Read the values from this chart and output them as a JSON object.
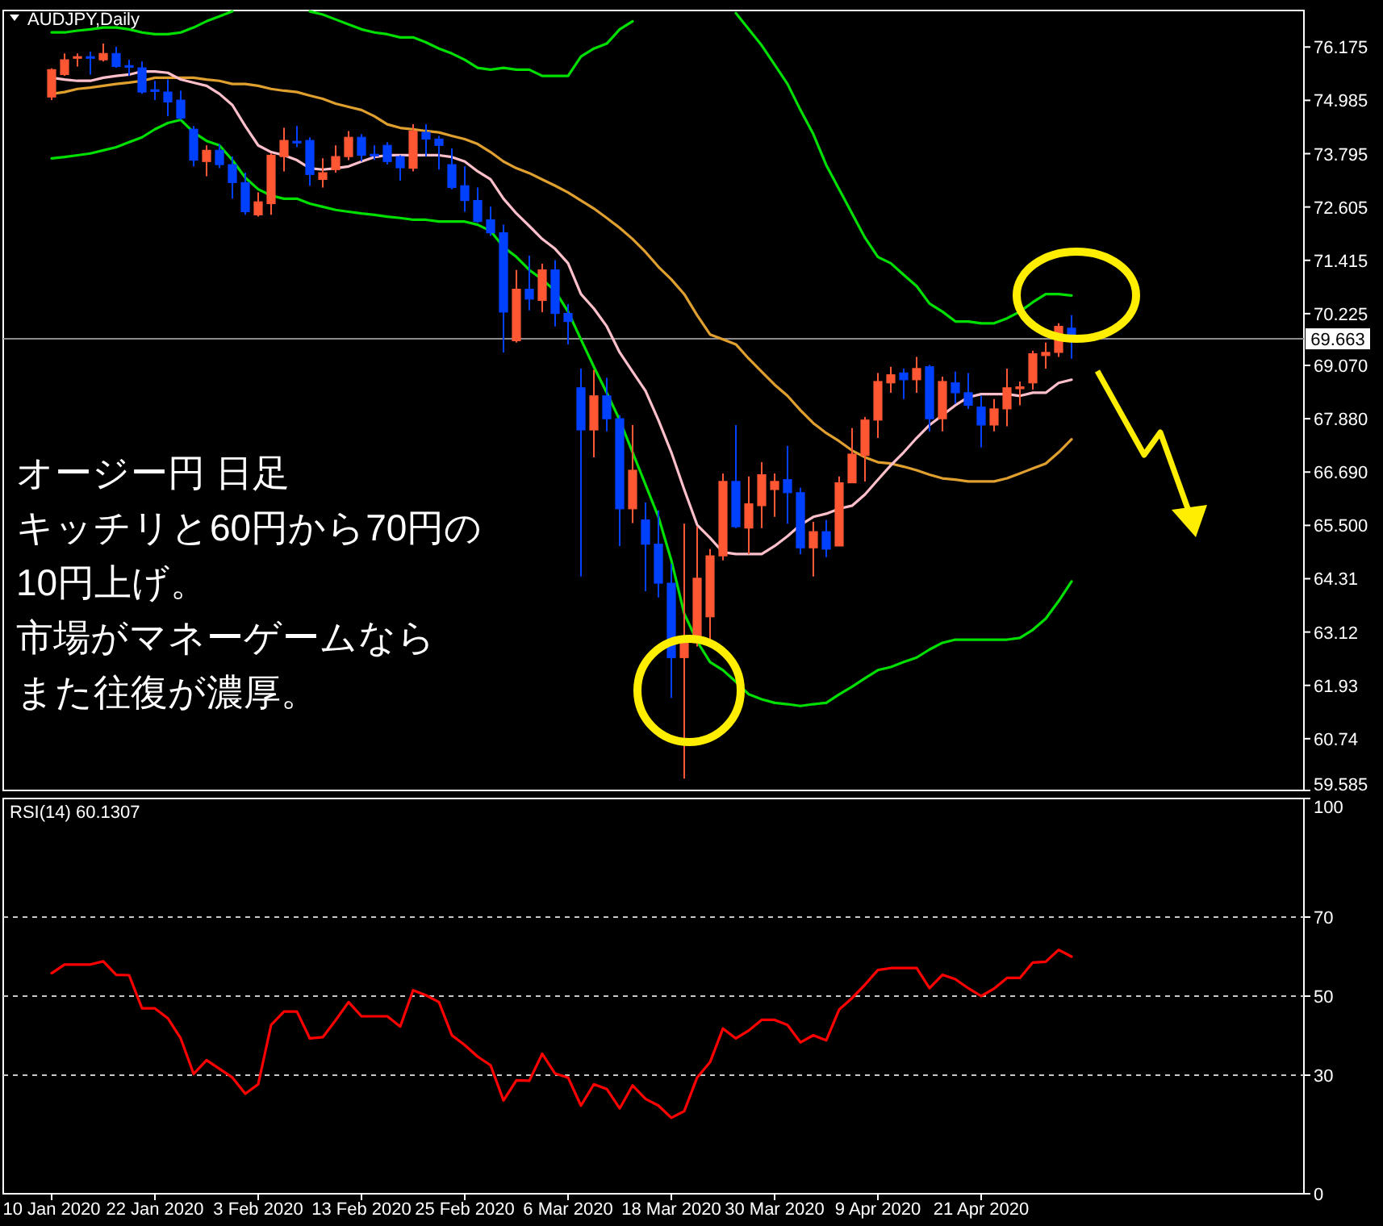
{
  "chart_data": [
    {
      "type": "candlestick",
      "title": "AUDJPY,Daily",
      "tick_labels": "y",
      "categories": [
        null,
        null,
        null,
        null,
        null,
        null,
        null,
        null,
        null,
        null,
        null,
        null,
        null,
        null,
        null,
        null,
        null,
        null,
        null,
        null,
        null,
        null,
        null,
        null,
        null,
        null,
        null,
        null,
        null,
        null,
        null,
        null,
        null,
        null,
        null,
        null,
        null,
        null,
        null,
        null,
        null,
        null,
        null,
        null,
        null,
        null,
        null,
        null,
        null,
        null,
        null,
        null,
        null,
        null,
        null,
        null,
        null,
        null,
        null,
        null,
        null,
        null,
        null,
        null,
        null,
        null,
        null,
        null,
        null,
        null,
        null,
        null,
        null,
        null,
        null,
        null,
        null,
        null,
        null,
        null
      ],
      "ohlc": [
        [
          75.06,
          75.7,
          74.99,
          75.67
        ],
        [
          75.56,
          76.03,
          75.53,
          75.89
        ],
        [
          75.93,
          76.03,
          75.74,
          75.96
        ],
        [
          75.96,
          76.07,
          75.56,
          75.93
        ],
        [
          75.89,
          76.25,
          75.85,
          76.03
        ],
        [
          76.03,
          76.18,
          75.71,
          75.74
        ],
        [
          75.76,
          75.89,
          75.53,
          75.74
        ],
        [
          75.71,
          75.85,
          75.13,
          75.17
        ],
        [
          75.22,
          75.42,
          74.99,
          75.2
        ],
        [
          75.17,
          75.45,
          74.63,
          74.95
        ],
        [
          74.99,
          75.2,
          74.55,
          74.59
        ],
        [
          74.34,
          74.41,
          73.51,
          73.65
        ],
        [
          73.62,
          73.98,
          73.29,
          73.87
        ],
        [
          73.87,
          74.01,
          73.47,
          73.55
        ],
        [
          73.55,
          73.73,
          72.79,
          73.15
        ],
        [
          73.15,
          73.37,
          72.43,
          72.5
        ],
        [
          72.43,
          72.93,
          72.39,
          72.72
        ],
        [
          72.68,
          73.8,
          72.43,
          73.76
        ],
        [
          73.73,
          74.37,
          73.4,
          74.09
        ],
        [
          74.07,
          74.41,
          73.94,
          74.05
        ],
        [
          74.09,
          74.16,
          73.08,
          73.33
        ],
        [
          73.22,
          73.69,
          73.04,
          73.37
        ],
        [
          73.44,
          73.98,
          73.37,
          73.73
        ],
        [
          73.73,
          74.3,
          73.65,
          74.16
        ],
        [
          74.16,
          74.23,
          73.62,
          73.76
        ],
        [
          73.78,
          73.98,
          73.65,
          73.76
        ],
        [
          73.98,
          74.05,
          73.55,
          73.62
        ],
        [
          73.73,
          73.76,
          73.19,
          73.48
        ],
        [
          73.47,
          74.45,
          73.4,
          74.3
        ],
        [
          74.27,
          74.45,
          73.73,
          74.12
        ],
        [
          74.12,
          74.19,
          73.44,
          73.98
        ],
        [
          73.55,
          73.91,
          73.0,
          73.04
        ],
        [
          73.08,
          73.51,
          72.5,
          72.75
        ],
        [
          72.75,
          73.04,
          72.25,
          72.28
        ],
        [
          72.32,
          72.61,
          71.96,
          72.03
        ],
        [
          72.03,
          72.21,
          69.36,
          70.26
        ],
        [
          69.62,
          71.2,
          69.58,
          70.77
        ],
        [
          70.77,
          71.52,
          70.3,
          70.55
        ],
        [
          70.52,
          71.34,
          70.26,
          71.2
        ],
        [
          71.2,
          71.42,
          69.94,
          70.23
        ],
        [
          70.23,
          70.44,
          69.54,
          70.05
        ],
        [
          68.57,
          69.0,
          64.36,
          67.63
        ],
        [
          67.63,
          68.97,
          67.02,
          68.39
        ],
        [
          68.39,
          68.79,
          67.6,
          67.88
        ],
        [
          67.88,
          67.96,
          65.04,
          65.87
        ],
        [
          65.87,
          67.74,
          65.55,
          66.73
        ],
        [
          65.62,
          66.01,
          64.03,
          65.08
        ],
        [
          65.08,
          65.83,
          63.89,
          64.21
        ],
        [
          64.21,
          64.64,
          61.65,
          62.55
        ],
        [
          62.55,
          65.54,
          59.85,
          62.88
        ],
        [
          62.88,
          65.47,
          62.8,
          64.32
        ],
        [
          63.46,
          64.97,
          62.88,
          64.82
        ],
        [
          64.82,
          66.66,
          64.72,
          66.48
        ],
        [
          66.48,
          67.74,
          65.44,
          65.47
        ],
        [
          65.44,
          66.59,
          64.86,
          65.98
        ],
        [
          65.94,
          66.91,
          65.44,
          66.63
        ],
        [
          66.3,
          66.66,
          65.69,
          66.48
        ],
        [
          66.52,
          67.27,
          65.54,
          66.23
        ],
        [
          66.23,
          66.34,
          64.86,
          65.0
        ],
        [
          65.0,
          65.58,
          64.36,
          65.36
        ],
        [
          65.36,
          65.62,
          64.79,
          64.97
        ],
        [
          65.04,
          66.59,
          65.04,
          66.45
        ],
        [
          66.45,
          67.67,
          66.45,
          67.09
        ],
        [
          67.06,
          67.92,
          66.48,
          67.85
        ],
        [
          67.85,
          68.9,
          67.45,
          68.71
        ],
        [
          68.68,
          69.04,
          68.46,
          68.86
        ],
        [
          68.9,
          69.0,
          68.32,
          68.75
        ],
        [
          68.75,
          69.26,
          68.46,
          69.0
        ],
        [
          69.04,
          69.08,
          67.6,
          67.88
        ],
        [
          67.88,
          68.82,
          67.6,
          68.71
        ],
        [
          68.68,
          68.93,
          68.21,
          68.46
        ],
        [
          68.46,
          68.9,
          68.1,
          68.18
        ],
        [
          68.14,
          68.39,
          67.24,
          67.74
        ],
        [
          67.74,
          68.32,
          67.6,
          68.1
        ],
        [
          68.1,
          69.0,
          67.71,
          68.57
        ],
        [
          68.55,
          68.71,
          68.18,
          68.59
        ],
        [
          68.68,
          69.4,
          68.53,
          69.33
        ],
        [
          69.29,
          69.58,
          69.0,
          69.36
        ],
        [
          69.36,
          70.01,
          69.26,
          69.94
        ],
        [
          69.9,
          70.19,
          69.22,
          69.663
        ]
      ],
      "colors": [
        "#ff5733",
        "#ff5733",
        "#ff5733",
        "#0040ff",
        "#ff5733",
        "#0040ff",
        "#0040ff",
        "#0040ff",
        "#0040ff",
        "#0040ff",
        "#0040ff",
        "#0040ff",
        "#ff5733",
        "#0040ff",
        "#0040ff",
        "#0040ff",
        "#ff5733",
        "#ff5733",
        "#ff5733",
        "#0040ff",
        "#0040ff",
        "#ff5733",
        "#ff5733",
        "#ff5733",
        "#0040ff",
        "#0040ff",
        "#0040ff",
        "#0040ff",
        "#ff5733",
        "#0040ff",
        "#0040ff",
        "#0040ff",
        "#0040ff",
        "#0040ff",
        "#0040ff",
        "#0040ff",
        "#ff5733",
        "#0040ff",
        "#ff5733",
        "#0040ff",
        "#0040ff",
        "#0040ff",
        "#ff5733",
        "#0040ff",
        "#0040ff",
        "#ff5733",
        "#0040ff",
        "#0040ff",
        "#0040ff",
        "#ff5733",
        "#ff5733",
        "#ff5733",
        "#ff5733",
        "#0040ff",
        "#ff5733",
        "#ff5733",
        "#ff5733",
        "#0040ff",
        "#0040ff",
        "#ff5733",
        "#0040ff",
        "#ff5733",
        "#ff5733",
        "#ff5733",
        "#ff5733",
        "#ff5733",
        "#0040ff",
        "#ff5733",
        "#0040ff",
        "#ff5733",
        "#0040ff",
        "#0040ff",
        "#0040ff",
        "#ff5733",
        "#ff5733",
        "#ff5733",
        "#ff5733",
        "#ff5733",
        "#ff5733",
        "#0040ff"
      ],
      "series": [
        {
          "type": "line",
          "color": "#00e000",
          "values": [
            76.5,
            76.5,
            76.54,
            76.57,
            76.61,
            76.61,
            76.57,
            76.5,
            76.46,
            76.46,
            76.5,
            76.61,
            76.75,
            76.86,
            76.97,
            null,
            null,
            null,
            null,
            null,
            76.97,
            76.9,
            76.79,
            76.68,
            76.57,
            76.5,
            76.46,
            76.39,
            76.39,
            76.28,
            76.14,
            76.03,
            75.89,
            75.71,
            75.67,
            75.71,
            75.67,
            75.67,
            75.53,
            75.53,
            75.53,
            75.96,
            76.14,
            76.25,
            76.57,
            76.75,
            null,
            null,
            null,
            null,
            null,
            null,
            null,
            76.93,
            76.57,
            76.21,
            75.78,
            75.35,
            74.77,
            74.23,
            73.54,
            73.0,
            72.46,
            71.92,
            71.49,
            71.35,
            71.09,
            70.84,
            70.45,
            70.27,
            70.05,
            70.05,
            70.01,
            70.01,
            70.12,
            70.27,
            70.48,
            70.66,
            70.66,
            70.63
          ]
        },
        {
          "type": "line",
          "color": "#00e000",
          "values": [
            73.69,
            73.72,
            73.76,
            73.8,
            73.87,
            73.94,
            74.05,
            74.16,
            74.34,
            74.48,
            74.55,
            74.27,
            74.08,
            73.98,
            73.65,
            73.26,
            73.0,
            72.86,
            72.79,
            72.79,
            72.68,
            72.61,
            72.54,
            72.5,
            72.46,
            72.43,
            72.39,
            72.36,
            72.32,
            72.32,
            72.28,
            72.28,
            72.28,
            72.21,
            72.07,
            71.71,
            71.49,
            71.2,
            70.99,
            70.73,
            70.27,
            69.65,
            69.04,
            68.46,
            67.85,
            67.13,
            66.41,
            65.69,
            64.72,
            63.53,
            62.91,
            62.45,
            62.27,
            62.01,
            61.73,
            61.62,
            61.54,
            61.51,
            61.47,
            61.51,
            61.54,
            61.73,
            61.9,
            62.09,
            62.27,
            62.34,
            62.45,
            62.55,
            62.73,
            62.88,
            62.95,
            62.95,
            62.95,
            62.95,
            62.95,
            62.99,
            63.17,
            63.42,
            63.81,
            64.25
          ]
        },
        {
          "type": "line",
          "color": "#e0a030",
          "values": [
            75.13,
            75.17,
            75.24,
            75.27,
            75.31,
            75.35,
            75.38,
            75.42,
            75.49,
            75.49,
            75.49,
            75.49,
            75.45,
            75.42,
            75.35,
            75.35,
            75.31,
            75.24,
            75.2,
            75.17,
            75.09,
            75.02,
            74.91,
            74.84,
            74.77,
            74.63,
            74.45,
            74.37,
            74.34,
            74.3,
            74.27,
            74.19,
            74.12,
            74.01,
            73.83,
            73.62,
            73.47,
            73.36,
            73.22,
            73.08,
            72.93,
            72.75,
            72.57,
            72.36,
            72.14,
            71.89,
            71.6,
            71.27,
            70.99,
            70.66,
            70.19,
            69.76,
            69.65,
            69.54,
            69.22,
            68.93,
            68.64,
            68.39,
            68.07,
            67.78,
            67.56,
            67.38,
            67.17,
            67.02,
            66.91,
            66.88,
            66.81,
            66.73,
            66.63,
            66.55,
            66.52,
            66.48,
            66.48,
            66.48,
            66.55,
            66.66,
            66.77,
            66.88,
            67.13,
            67.42
          ]
        },
        {
          "type": "line",
          "color": "#ffc0cb",
          "values": [
            75.49,
            75.45,
            75.42,
            75.42,
            75.49,
            75.53,
            75.56,
            75.63,
            75.63,
            75.6,
            75.45,
            75.38,
            75.31,
            75.13,
            74.88,
            74.41,
            73.98,
            73.83,
            73.76,
            73.65,
            73.47,
            73.44,
            73.47,
            73.51,
            73.62,
            73.72,
            73.76,
            73.76,
            73.76,
            73.76,
            73.76,
            73.72,
            73.62,
            73.4,
            73.22,
            72.79,
            72.46,
            72.18,
            71.89,
            71.67,
            71.35,
            70.66,
            70.34,
            69.94,
            69.36,
            68.93,
            68.5,
            67.85,
            67.13,
            66.3,
            65.51,
            65.22,
            64.9,
            64.86,
            64.86,
            64.86,
            65.04,
            65.26,
            65.51,
            65.69,
            65.76,
            65.87,
            65.94,
            66.19,
            66.52,
            66.84,
            67.13,
            67.45,
            67.74,
            67.96,
            68.18,
            68.36,
            68.43,
            68.43,
            68.43,
            68.39,
            68.46,
            68.46,
            68.68,
            68.75
          ]
        }
      ],
      "ylim": [
        59.585,
        76.99
      ],
      "yticks": [
        76.175,
        74.985,
        73.795,
        72.605,
        71.415,
        70.225,
        {
          "value": 69.07,
          "label": "69.070"
        },
        {
          "value": 67.88,
          "label": "67.880"
        },
        {
          "value": 66.69,
          "label": "66.690"
        },
        {
          "value": 65.5,
          "label": "65.500"
        },
        64.31,
        63.12,
        61.93,
        60.74,
        59.585
      ],
      "ref_lines": [
        {
          "axis": "y",
          "value": 69.663,
          "label": "69.663",
          "color": "#8c8c8c"
        }
      ],
      "annotations": [
        "オージー円 日足",
        "キッチリと60円から70円の",
        "10円上げ。",
        "市場がマネーゲームなら",
        "また往復が濃厚。"
      ]
    },
    {
      "type": "line",
      "title": "RSI(14) 60.1307",
      "categories": [
        "10 Jan 2020",
        null,
        null,
        null,
        null,
        null,
        null,
        null,
        "22 Jan 2020",
        null,
        null,
        null,
        null,
        null,
        null,
        null,
        "3 Feb 2020",
        null,
        null,
        null,
        null,
        null,
        null,
        null,
        "13 Feb 2020",
        null,
        null,
        null,
        null,
        null,
        null,
        null,
        "25 Feb 2020",
        null,
        null,
        null,
        null,
        null,
        null,
        null,
        "6 Mar 2020",
        null,
        null,
        null,
        null,
        null,
        null,
        null,
        "18 Mar 2020",
        null,
        null,
        null,
        null,
        null,
        null,
        null,
        "30 Mar 2020",
        null,
        null,
        null,
        null,
        null,
        null,
        null,
        "9 Apr 2020",
        null,
        null,
        null,
        null,
        null,
        null,
        null,
        "21 Apr 2020",
        null,
        null,
        null,
        null,
        null,
        null,
        null
      ],
      "series": [
        {
          "color": "#ff0000",
          "values": [
            55.8,
            58.0,
            58.0,
            58.0,
            58.8,
            55.4,
            55.3,
            46.9,
            46.9,
            44.4,
            39.3,
            30.3,
            33.8,
            31.6,
            29.4,
            25.3,
            27.7,
            42.7,
            46.1,
            46.1,
            39.3,
            39.6,
            43.9,
            48.5,
            44.9,
            44.9,
            44.9,
            42.3,
            51.5,
            50.2,
            48.5,
            40.1,
            37.6,
            34.7,
            32.5,
            23.6,
            28.7,
            28.6,
            35.4,
            30.4,
            29.4,
            22.3,
            27.7,
            26.5,
            21.6,
            27.4,
            24.0,
            22.3,
            19.2,
            20.9,
            29.4,
            33.3,
            41.8,
            39.3,
            41.3,
            44.0,
            44.0,
            42.7,
            38.3,
            40.1,
            38.8,
            46.6,
            49.5,
            52.9,
            56.6,
            57.1,
            57.1,
            57.1,
            52.0,
            55.4,
            54.3,
            52.0,
            50.0,
            51.9,
            54.6,
            54.6,
            58.5,
            58.7,
            61.7,
            60.0
          ]
        }
      ],
      "ylim": [
        0,
        100
      ],
      "yticks": [
        0,
        30,
        50,
        70,
        100
      ],
      "ref_lines": [
        {
          "axis": "y",
          "value": 70,
          "color": "#c8c8c8",
          "line_style": "dashed"
        },
        {
          "axis": "y",
          "value": 50,
          "color": "#c8c8c8",
          "line_style": "dashed"
        },
        {
          "axis": "y",
          "value": 30,
          "color": "#c8c8c8",
          "line_style": "dashed"
        }
      ]
    }
  ]
}
